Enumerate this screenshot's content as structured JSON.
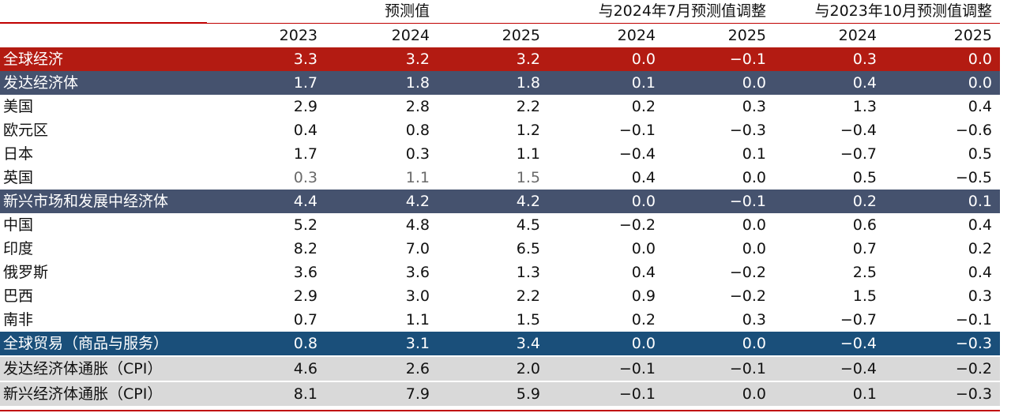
{
  "header": {
    "group_forecast": "预测值",
    "group_vs_jul2024": "与2024年7月预测值调整",
    "group_vs_oct2023": "与2023年10月预测值调整",
    "years": [
      "2023",
      "2024",
      "2025",
      "2024",
      "2025",
      "2024",
      "2025"
    ]
  },
  "rows": [
    {
      "name": "全球经济",
      "values": [
        "3.3",
        "3.2",
        "3.2",
        "0.0",
        "−0.1",
        "0.3",
        "0.0"
      ],
      "style": "red"
    },
    {
      "name": "发达经济体",
      "values": [
        "1.7",
        "1.8",
        "1.8",
        "0.1",
        "0.0",
        "0.4",
        "0.0"
      ],
      "style": "slate"
    },
    {
      "name": "美国",
      "values": [
        "2.9",
        "2.8",
        "2.2",
        "0.2",
        "0.3",
        "1.3",
        "0.4"
      ],
      "style": "plain"
    },
    {
      "name": "欧元区",
      "values": [
        "0.4",
        "0.8",
        "1.2",
        "−0.1",
        "−0.3",
        "−0.4",
        "−0.6"
      ],
      "style": "plain"
    },
    {
      "name": "日本",
      "values": [
        "1.7",
        "0.3",
        "1.1",
        "−0.4",
        "0.1",
        "−0.7",
        "0.5"
      ],
      "style": "plain"
    },
    {
      "name": "英国",
      "values": [
        "0.3",
        "1.1",
        "1.5",
        "0.4",
        "0.0",
        "0.5",
        "−0.5"
      ],
      "style": "plain"
    },
    {
      "name": "新兴市场和发展中经济体",
      "values": [
        "4.4",
        "4.2",
        "4.2",
        "0.0",
        "−0.1",
        "0.2",
        "0.1"
      ],
      "style": "slate"
    },
    {
      "name": "中国",
      "values": [
        "5.2",
        "4.8",
        "4.5",
        "−0.2",
        "0.0",
        "0.6",
        "0.4"
      ],
      "style": "plain"
    },
    {
      "name": "印度",
      "values": [
        "8.2",
        "7.0",
        "6.5",
        "0.0",
        "0.0",
        "0.7",
        "0.2"
      ],
      "style": "plain"
    },
    {
      "name": "俄罗斯",
      "values": [
        "3.6",
        "3.6",
        "1.3",
        "0.4",
        "−0.2",
        "2.5",
        "0.4"
      ],
      "style": "plain"
    },
    {
      "name": "巴西",
      "values": [
        "2.9",
        "3.0",
        "2.2",
        "0.9",
        "−0.2",
        "1.5",
        "0.3"
      ],
      "style": "plain"
    },
    {
      "name": "南非",
      "values": [
        "0.7",
        "1.1",
        "1.5",
        "0.2",
        "0.3",
        "−0.7",
        "−0.1"
      ],
      "style": "plain"
    },
    {
      "name": "全球贸易（商品与服务）",
      "values": [
        "0.8",
        "3.1",
        "3.4",
        "0.0",
        "0.0",
        "−0.4",
        "−0.3"
      ],
      "style": "blue"
    },
    {
      "name": "发达经济体通胀（CPI）",
      "values": [
        "4.6",
        "2.6",
        "2.0",
        "−0.1",
        "−0.1",
        "−0.4",
        "−0.2"
      ],
      "style": "gray"
    },
    {
      "name": "新兴经济体通胀（CPI）",
      "values": [
        "8.1",
        "7.9",
        "5.9",
        "−0.1",
        "0.0",
        "0.1",
        "−0.3"
      ],
      "style": "gray"
    }
  ],
  "colors": {
    "red": "#b31b12",
    "slate": "#45526e",
    "blue": "#1a4f7a",
    "gray": "#d9d9d9",
    "rule": "#c00000"
  }
}
